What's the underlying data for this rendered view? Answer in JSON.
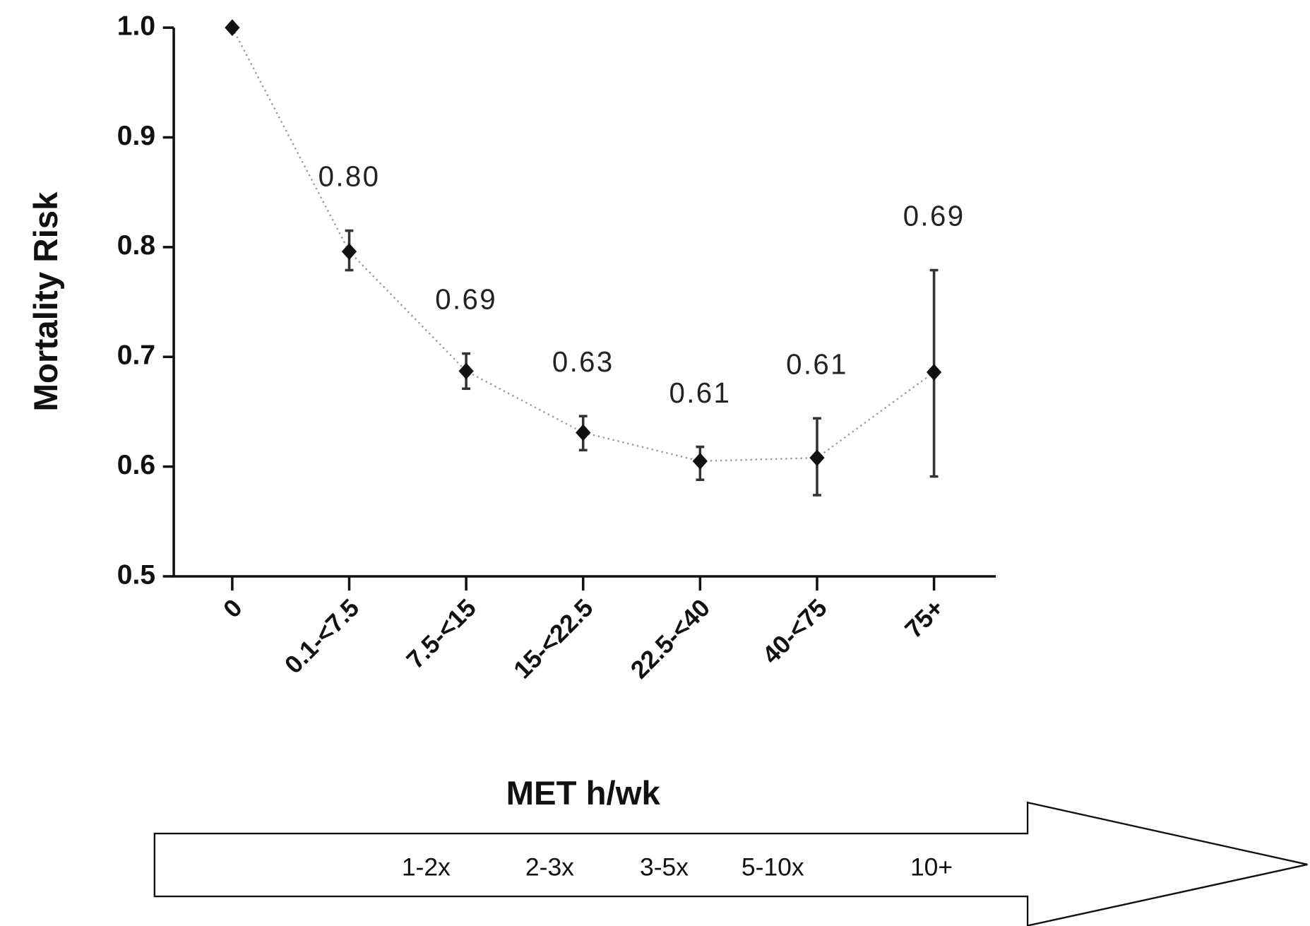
{
  "chart_data": {
    "type": "line",
    "y_label": "Mortality Risk",
    "x_label": "MET h/wk",
    "categories": [
      "0",
      "0.1-<7.5",
      "7.5-<15",
      "15-<22.5",
      "22.5-<40",
      "40-<75",
      "75+"
    ],
    "values": [
      1.0,
      0.796,
      0.687,
      0.631,
      0.605,
      0.608,
      0.686
    ],
    "lower": [
      null,
      0.779,
      0.671,
      0.615,
      0.588,
      0.574,
      0.591
    ],
    "upper": [
      null,
      0.815,
      0.703,
      0.646,
      0.618,
      0.644,
      0.779
    ],
    "value_labels": [
      null,
      "0.80",
      "0.69",
      "0.63",
      "0.61",
      "0.61",
      "0.69"
    ],
    "color": "#111111",
    "line_color": "#999999",
    "ylim": [
      0.5,
      1.0
    ],
    "yticks": [
      0.5,
      0.6,
      0.7,
      0.8,
      0.9,
      {
        "value": 1.0,
        "label": "1.0"
      }
    ],
    "arrow_labels": [
      "1-2x",
      "2-3x",
      "3-5x",
      "5-10x",
      "10+"
    ]
  }
}
